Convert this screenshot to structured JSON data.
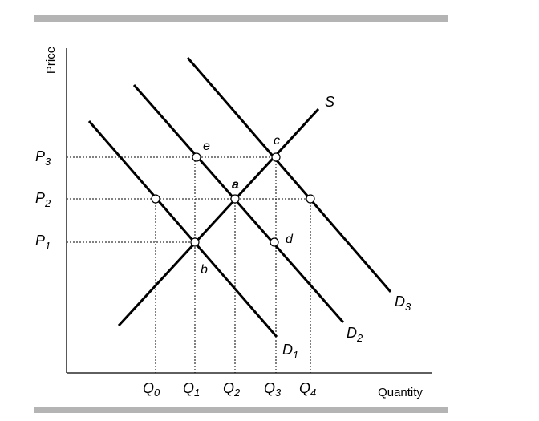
{
  "axes": {
    "y_title": "Price",
    "x_title": "Quantity"
  },
  "price_ticks": [
    {
      "main": "P",
      "sub": "3"
    },
    {
      "main": "P",
      "sub": "2"
    },
    {
      "main": "P",
      "sub": "1"
    }
  ],
  "quantity_ticks": [
    {
      "main": "Q",
      "sub": "0"
    },
    {
      "main": "Q",
      "sub": "1"
    },
    {
      "main": "Q",
      "sub": "2"
    },
    {
      "main": "Q",
      "sub": "3"
    },
    {
      "main": "Q",
      "sub": "4"
    }
  ],
  "curves": {
    "supply": {
      "main": "S",
      "sub": ""
    },
    "d1": {
      "main": "D",
      "sub": "1"
    },
    "d2": {
      "main": "D",
      "sub": "2"
    },
    "d3": {
      "main": "D",
      "sub": "3"
    }
  },
  "points": {
    "a": "a",
    "b": "b",
    "c": "c",
    "d": "d",
    "e": "e"
  }
}
